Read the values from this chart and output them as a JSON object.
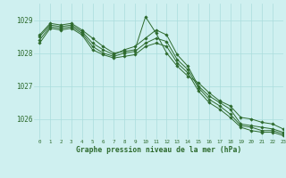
{
  "title": "Graphe pression niveau de la mer (hPa)",
  "bg_color": "#cff0f0",
  "grid_color": "#aadddd",
  "line_color": "#2d6a2d",
  "xlim": [
    -0.5,
    23
  ],
  "ylim": [
    1025.4,
    1029.5
  ],
  "yticks": [
    1026,
    1027,
    1028,
    1029
  ],
  "xticks": [
    0,
    1,
    2,
    3,
    4,
    5,
    6,
    7,
    8,
    9,
    10,
    11,
    12,
    13,
    14,
    15,
    16,
    17,
    18,
    19,
    20,
    21,
    22,
    23
  ],
  "series": [
    [
      1028.55,
      1028.9,
      1028.85,
      1028.9,
      1028.7,
      1028.45,
      1028.2,
      1028.0,
      1028.05,
      1028.1,
      1029.1,
      1028.6,
      1028.0,
      1027.6,
      1027.3,
      1027.1,
      1026.8,
      1026.55,
      1026.4,
      1026.05,
      1026.0,
      1025.9,
      1025.85,
      1025.7
    ],
    [
      1028.5,
      1028.85,
      1028.8,
      1028.85,
      1028.65,
      1028.3,
      1028.1,
      1027.95,
      1028.1,
      1028.2,
      1028.45,
      1028.7,
      1028.55,
      1027.95,
      1027.6,
      1027.0,
      1026.7,
      1026.5,
      1026.3,
      1025.85,
      1025.8,
      1025.75,
      1025.7,
      1025.6
    ],
    [
      1028.4,
      1028.8,
      1028.75,
      1028.8,
      1028.6,
      1028.2,
      1028.0,
      1027.9,
      1028.0,
      1028.05,
      1028.3,
      1028.45,
      1028.35,
      1027.8,
      1027.5,
      1026.95,
      1026.6,
      1026.4,
      1026.15,
      1025.8,
      1025.75,
      1025.65,
      1025.65,
      1025.55
    ],
    [
      1028.3,
      1028.75,
      1028.7,
      1028.75,
      1028.55,
      1028.1,
      1027.95,
      1027.85,
      1027.9,
      1027.95,
      1028.2,
      1028.3,
      1028.2,
      1027.7,
      1027.4,
      1026.85,
      1026.5,
      1026.3,
      1026.05,
      1025.75,
      1025.65,
      1025.6,
      1025.6,
      1025.5
    ]
  ]
}
